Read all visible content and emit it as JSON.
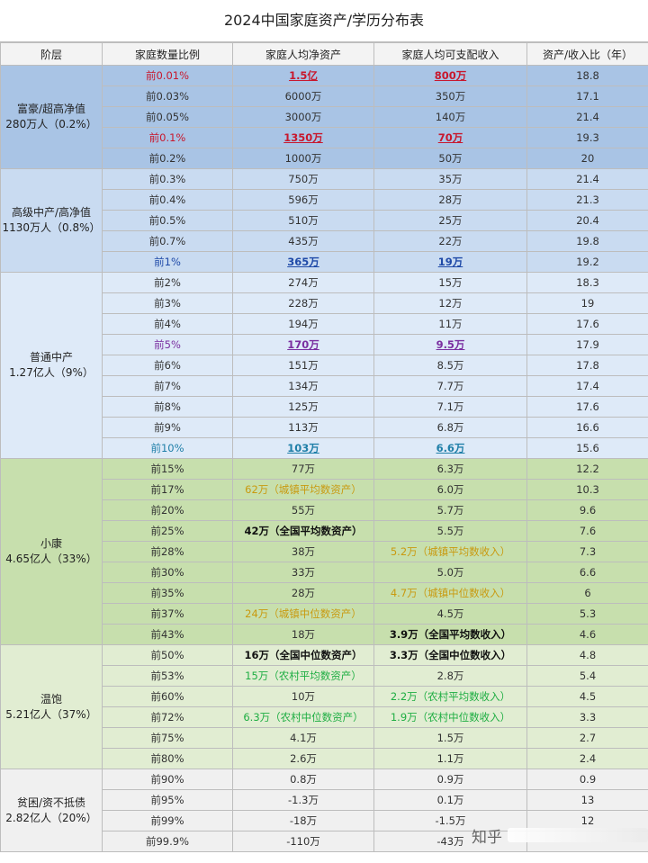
{
  "title": "2024中国家庭资产/学历分布表",
  "headers": [
    "阶层",
    "家庭数量比例",
    "家庭人均净资产",
    "家庭人均可支配收入",
    "资产/收入比（年）"
  ],
  "tiers": [
    {
      "name": "富豪/超高净值",
      "population": "280万人（0.2%）",
      "cls": "t0",
      "rows": [
        {
          "pct": "前0.01%",
          "asset": "1.5亿",
          "income": "800万",
          "ratio": "18.8",
          "style": "red"
        },
        {
          "pct": "前0.03%",
          "asset": "6000万",
          "income": "350万",
          "ratio": "17.1"
        },
        {
          "pct": "前0.05%",
          "asset": "3000万",
          "income": "140万",
          "ratio": "21.4"
        },
        {
          "pct": "前0.1%",
          "asset": "1350万",
          "income": "70万",
          "ratio": "19.3",
          "style": "red"
        },
        {
          "pct": "前0.2%",
          "asset": "1000万",
          "income": "50万",
          "ratio": "20"
        }
      ]
    },
    {
      "name": "高级中产/高净值",
      "population": "1130万人（0.8%）",
      "cls": "t1",
      "rows": [
        {
          "pct": "前0.3%",
          "asset": "750万",
          "income": "35万",
          "ratio": "21.4"
        },
        {
          "pct": "前0.4%",
          "asset": "596万",
          "income": "28万",
          "ratio": "21.3"
        },
        {
          "pct": "前0.5%",
          "asset": "510万",
          "income": "25万",
          "ratio": "20.4"
        },
        {
          "pct": "前0.7%",
          "asset": "435万",
          "income": "22万",
          "ratio": "19.8"
        },
        {
          "pct": "前1%",
          "asset": "365万",
          "income": "19万",
          "ratio": "19.2",
          "style": "blue"
        }
      ]
    },
    {
      "name": "普通中产",
      "population": "1.27亿人（9%）",
      "cls": "t2",
      "rows": [
        {
          "pct": "前2%",
          "asset": "274万",
          "income": "15万",
          "ratio": "18.3"
        },
        {
          "pct": "前3%",
          "asset": "228万",
          "income": "12万",
          "ratio": "19"
        },
        {
          "pct": "前4%",
          "asset": "194万",
          "income": "11万",
          "ratio": "17.6"
        },
        {
          "pct": "前5%",
          "asset": "170万",
          "income": "9.5万",
          "ratio": "17.9",
          "style": "purple"
        },
        {
          "pct": "前6%",
          "asset": "151万",
          "income": "8.5万",
          "ratio": "17.8"
        },
        {
          "pct": "前7%",
          "asset": "134万",
          "income": "7.7万",
          "ratio": "17.4"
        },
        {
          "pct": "前8%",
          "asset": "125万",
          "income": "7.1万",
          "ratio": "17.6"
        },
        {
          "pct": "前9%",
          "asset": "113万",
          "income": "6.8万",
          "ratio": "16.6"
        },
        {
          "pct": "前10%",
          "asset": "103万",
          "income": "6.6万",
          "ratio": "15.6",
          "style": "teal"
        }
      ]
    },
    {
      "name": "小康",
      "population": "4.65亿人（33%）",
      "cls": "t3",
      "rows": [
        {
          "pct": "前15%",
          "asset": "77万",
          "income": "6.3万",
          "ratio": "12.2"
        },
        {
          "pct": "前17%",
          "asset": "62万（城镇平均数资产）",
          "income": "6.0万",
          "ratio": "10.3",
          "asset_style": "gold"
        },
        {
          "pct": "前20%",
          "asset": "55万",
          "income": "5.7万",
          "ratio": "9.6"
        },
        {
          "pct": "前25%",
          "asset": "42万（全国平均数资产）",
          "income": "5.5万",
          "ratio": "7.6",
          "asset_style": "black"
        },
        {
          "pct": "前28%",
          "asset": "38万",
          "income": "5.2万（城镇平均数收入）",
          "ratio": "7.3",
          "income_style": "gold"
        },
        {
          "pct": "前30%",
          "asset": "33万",
          "income": "5.0万",
          "ratio": "6.6"
        },
        {
          "pct": "前35%",
          "asset": "28万",
          "income": "4.7万（城镇中位数收入）",
          "ratio": "6",
          "income_style": "gold"
        },
        {
          "pct": "前37%",
          "asset": "24万（城镇中位数资产）",
          "income": "4.5万",
          "ratio": "5.3",
          "asset_style": "gold"
        },
        {
          "pct": "前43%",
          "asset": "18万",
          "income": "3.9万（全国平均数收入）",
          "ratio": "4.6",
          "income_style": "black"
        }
      ]
    },
    {
      "name": "温饱",
      "population": "5.21亿人（37%）",
      "cls": "t4",
      "rows": [
        {
          "pct": "前50%",
          "asset": "16万（全国中位数资产）",
          "income": "3.3万（全国中位数收入）",
          "ratio": "4.8",
          "asset_style": "black",
          "income_style": "black"
        },
        {
          "pct": "前53%",
          "asset": "15万（农村平均数资产）",
          "income": "2.8万",
          "ratio": "5.4",
          "asset_style": "green"
        },
        {
          "pct": "前60%",
          "asset": "10万",
          "income": "2.2万（农村平均数收入）",
          "ratio": "4.5",
          "income_style": "green"
        },
        {
          "pct": "前72%",
          "asset": "6.3万（农村中位数资产）",
          "income": "1.9万（农村中位数收入）",
          "ratio": "3.3",
          "asset_style": "green",
          "income_style": "green"
        },
        {
          "pct": "前75%",
          "asset": "4.1万",
          "income": "1.5万",
          "ratio": "2.7"
        },
        {
          "pct": "前80%",
          "asset": "2.6万",
          "income": "1.1万",
          "ratio": "2.4"
        }
      ]
    },
    {
      "name": "贫困/资不抵债",
      "population": "2.82亿人（20%）",
      "cls": "t5",
      "rows": [
        {
          "pct": "前90%",
          "asset": "0.8万",
          "income": "0.9万",
          "ratio": "0.9"
        },
        {
          "pct": "前95%",
          "asset": "-1.3万",
          "income": "0.1万",
          "ratio": "13"
        },
        {
          "pct": "前99%",
          "asset": "-18万",
          "income": "-1.5万",
          "ratio": "12"
        },
        {
          "pct": "前99.9%",
          "asset": "-110万",
          "income": "-43万",
          "ratio": ""
        }
      ]
    }
  ],
  "watermark": {
    "logo": "知乎"
  }
}
